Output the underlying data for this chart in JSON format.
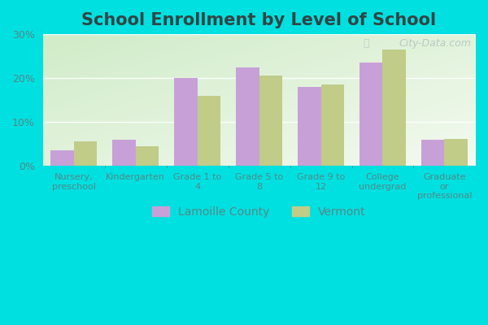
{
  "title": "School Enrollment by Level of School",
  "categories": [
    "Nursery,\npreschool",
    "Kindergarten",
    "Grade 1 to\n4",
    "Grade 5 to\n8",
    "Grade 9 to\n12",
    "College\nundergrad",
    "Graduate\nor\nprofessional"
  ],
  "lamoille_values": [
    3.5,
    6.0,
    20.0,
    22.5,
    18.0,
    23.5,
    6.0
  ],
  "vermont_values": [
    5.5,
    4.5,
    16.0,
    20.5,
    18.5,
    26.5,
    6.2
  ],
  "lamoille_color": "#c8a0d8",
  "vermont_color": "#c0cc88",
  "background_color": "#00e0e0",
  "plot_bg_top_left": "#c8e8c0",
  "plot_bg_bottom_right": "#f0f8f0",
  "ylim": [
    0,
    30
  ],
  "yticks": [
    0,
    10,
    20,
    30
  ],
  "legend_labels": [
    "Lamoille County",
    "Vermont"
  ],
  "title_fontsize": 15,
  "bar_width": 0.38,
  "grid_color": "#e0ece0",
  "watermark": "City-Data.com",
  "tick_label_fontsize": 8,
  "tick_color": "#558888",
  "title_color": "#334444"
}
